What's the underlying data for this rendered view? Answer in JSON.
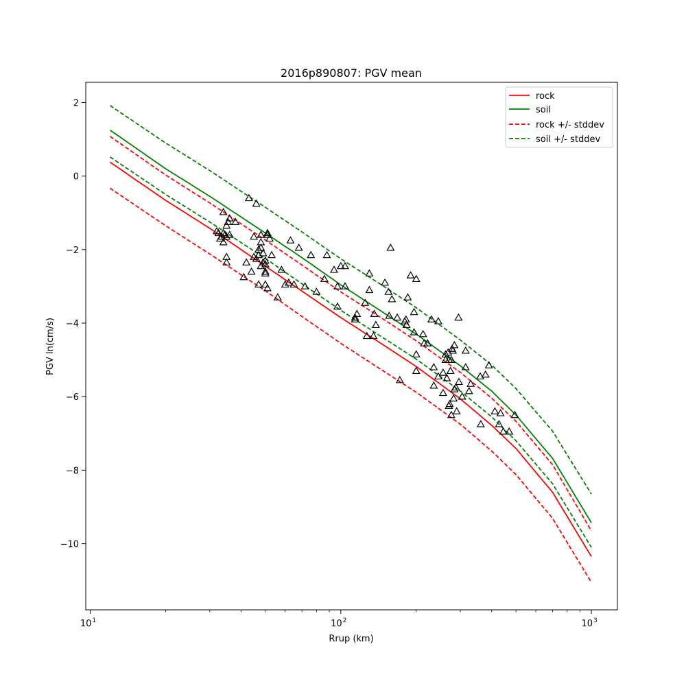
{
  "chart_data": {
    "type": "scatter",
    "title": "2016p890807: PGV mean",
    "xlabel": "Rrup (km)",
    "ylabel": "PGV ln(cm/s)",
    "xscale": "log",
    "xlim": [
      9.6,
      1270
    ],
    "ylim": [
      -11.8,
      2.55
    ],
    "xticks": [
      10,
      100,
      1000
    ],
    "xtick_labels": [
      [
        "10",
        "1"
      ],
      [
        "10",
        "2"
      ],
      [
        "10",
        "3"
      ]
    ],
    "yticks": [
      -10,
      -8,
      -6,
      -4,
      -2,
      0,
      2
    ],
    "ytick_labels": [
      "−10",
      "−8",
      "−6",
      "−4",
      "−2",
      "0",
      "2"
    ],
    "grid": false,
    "legend_position": "top-right",
    "series": [
      {
        "name": "rock",
        "style": "solid",
        "color": "#ff0000",
        "x": [
          12,
          20,
          30,
          50,
          70,
          100,
          150,
          200,
          300,
          400,
          500,
          700,
          1000
        ],
        "y": [
          0.38,
          -0.66,
          -1.42,
          -2.45,
          -3.13,
          -3.85,
          -4.62,
          -5.18,
          -6.06,
          -6.78,
          -7.41,
          -8.6,
          -10.35
        ]
      },
      {
        "name": "soil",
        "style": "solid",
        "color": "#008000",
        "x": [
          12,
          20,
          30,
          50,
          70,
          100,
          150,
          200,
          300,
          400,
          500,
          700,
          1000
        ],
        "y": [
          1.25,
          0.2,
          -0.55,
          -1.55,
          -2.22,
          -2.96,
          -3.74,
          -4.3,
          -5.16,
          -5.85,
          -6.5,
          -7.68,
          -9.43
        ]
      },
      {
        "name": "rock +/- stddev",
        "style": "dashed",
        "color": "#ff0000",
        "band": "upper",
        "x": [
          12,
          20,
          30,
          50,
          70,
          100,
          150,
          200,
          300,
          400,
          500,
          700,
          1000
        ],
        "y": [
          1.08,
          0.03,
          -0.73,
          -1.74,
          -2.42,
          -3.15,
          -3.92,
          -4.48,
          -5.34,
          -6.04,
          -6.67,
          -7.85,
          -9.65
        ]
      },
      {
        "name": "",
        "style": "dashed",
        "color": "#ff0000",
        "band": "lower",
        "x": [
          12,
          20,
          30,
          50,
          70,
          100,
          150,
          200,
          300,
          400,
          500,
          700,
          1000
        ],
        "y": [
          -0.33,
          -1.35,
          -2.12,
          -3.12,
          -3.82,
          -4.55,
          -5.33,
          -5.88,
          -6.75,
          -7.48,
          -8.12,
          -9.31,
          -11.05
        ]
      },
      {
        "name": "soil +/- stddev",
        "style": "dashed",
        "color": "#008000",
        "band": "upper",
        "x": [
          12,
          20,
          30,
          50,
          70,
          100,
          150,
          200,
          300,
          400,
          500,
          700,
          1000
        ],
        "y": [
          1.92,
          0.9,
          0.15,
          -0.85,
          -1.52,
          -2.25,
          -3.02,
          -3.58,
          -4.46,
          -5.14,
          -5.78,
          -6.94,
          -8.65
        ]
      },
      {
        "name": "",
        "style": "dashed",
        "color": "#008000",
        "band": "lower",
        "x": [
          12,
          20,
          30,
          50,
          70,
          100,
          150,
          200,
          300,
          400,
          500,
          700,
          1000
        ],
        "y": [
          0.52,
          -0.5,
          -1.25,
          -2.24,
          -2.93,
          -3.65,
          -4.43,
          -4.98,
          -5.85,
          -6.55,
          -7.2,
          -8.37,
          -10.1
        ]
      }
    ],
    "observations": {
      "marker": "open-triangle",
      "color": "#000000",
      "points": [
        [
          32,
          -1.5
        ],
        [
          32.5,
          -1.55
        ],
        [
          33,
          -1.7
        ],
        [
          33.5,
          -1.65
        ],
        [
          34,
          -1.55
        ],
        [
          34,
          -1.8
        ],
        [
          34.5,
          -1.6
        ],
        [
          35,
          -1.35
        ],
        [
          35,
          -1.65
        ],
        [
          35.5,
          -1.25
        ],
        [
          36,
          -1.15
        ],
        [
          36,
          -1.6
        ],
        [
          34,
          -0.98
        ],
        [
          35,
          -2.2
        ],
        [
          35,
          -2.35
        ],
        [
          38,
          -1.25
        ],
        [
          41,
          -2.75
        ],
        [
          42,
          -2.35
        ],
        [
          43,
          -0.6
        ],
        [
          44,
          -2.6
        ],
        [
          45,
          -2.2
        ],
        [
          45,
          -1.65
        ],
        [
          46,
          -0.75
        ],
        [
          46,
          -2.25
        ],
        [
          47,
          -2.15
        ],
        [
          47,
          -2.95
        ],
        [
          47,
          -2.0
        ],
        [
          48,
          -1.6
        ],
        [
          48,
          -2.45
        ],
        [
          48,
          -1.8
        ],
        [
          48,
          -1.95
        ],
        [
          49,
          -2.1
        ],
        [
          49,
          -2.35
        ],
        [
          50,
          -2.65
        ],
        [
          50,
          -2.4
        ],
        [
          50,
          -2.3
        ],
        [
          50,
          -2.95
        ],
        [
          51,
          -3.05
        ],
        [
          51,
          -1.55
        ],
        [
          51,
          -1.6
        ],
        [
          52,
          -1.7
        ],
        [
          50,
          -2.6
        ],
        [
          53,
          -2.15
        ],
        [
          56,
          -3.3
        ],
        [
          58,
          -2.55
        ],
        [
          60,
          -2.95
        ],
        [
          62,
          -2.9
        ],
        [
          63,
          -1.75
        ],
        [
          65,
          -2.95
        ],
        [
          68,
          -1.95
        ],
        [
          72,
          -3.0
        ],
        [
          76,
          -2.15
        ],
        [
          80,
          -3.15
        ],
        [
          86,
          -2.8
        ],
        [
          88,
          -2.15
        ],
        [
          94,
          -2.55
        ],
        [
          97,
          -3.0
        ],
        [
          97,
          -3.55
        ],
        [
          100,
          -2.45
        ],
        [
          104,
          -2.45
        ],
        [
          104,
          -3.0
        ],
        [
          114,
          -3.85
        ],
        [
          114,
          -3.9
        ],
        [
          116,
          -3.75
        ],
        [
          125,
          -3.45
        ],
        [
          127,
          -4.35
        ],
        [
          130,
          -2.65
        ],
        [
          130,
          -3.1
        ],
        [
          135,
          -4.35
        ],
        [
          136,
          -3.75
        ],
        [
          138,
          -4.05
        ],
        [
          150,
          -2.9
        ],
        [
          155,
          -3.15
        ],
        [
          158,
          -1.95
        ],
        [
          160,
          -3.35
        ],
        [
          156,
          -3.8
        ],
        [
          168,
          -3.85
        ],
        [
          172,
          -5.55
        ],
        [
          180,
          -3.95
        ],
        [
          182,
          -3.9
        ],
        [
          183,
          -4.05
        ],
        [
          185,
          -3.3
        ],
        [
          190,
          -2.7
        ],
        [
          196,
          -3.7
        ],
        [
          196,
          -4.25
        ],
        [
          200,
          -2.8
        ],
        [
          200,
          -4.85
        ],
        [
          200,
          -5.3
        ],
        [
          213,
          -4.3
        ],
        [
          215,
          -4.55
        ],
        [
          222,
          -4.55
        ],
        [
          230,
          -3.9
        ],
        [
          235,
          -5.2
        ],
        [
          235,
          -5.7
        ],
        [
          245,
          -3.95
        ],
        [
          245,
          -5.45
        ],
        [
          256,
          -5.9
        ],
        [
          256,
          -5.35
        ],
        [
          262,
          -4.85
        ],
        [
          262,
          -5.0
        ],
        [
          265,
          -5.5
        ],
        [
          268,
          -4.8
        ],
        [
          270,
          -5.0
        ],
        [
          270,
          -6.25
        ],
        [
          272,
          -6.2
        ],
        [
          274,
          -5.3
        ],
        [
          276,
          -6.5
        ],
        [
          276,
          -5.0
        ],
        [
          278,
          -4.7
        ],
        [
          280,
          -4.75
        ],
        [
          282,
          -6.05
        ],
        [
          284,
          -5.8
        ],
        [
          284,
          -4.6
        ],
        [
          288,
          -5.75
        ],
        [
          290,
          -6.4
        ],
        [
          295,
          -3.85
        ],
        [
          296,
          -5.6
        ],
        [
          305,
          -6.0
        ],
        [
          315,
          -4.75
        ],
        [
          315,
          -5.2
        ],
        [
          325,
          -5.85
        ],
        [
          330,
          -5.65
        ],
        [
          360,
          -5.45
        ],
        [
          362,
          -6.75
        ],
        [
          378,
          -5.4
        ],
        [
          390,
          -5.15
        ],
        [
          412,
          -6.4
        ],
        [
          428,
          -6.75
        ],
        [
          434,
          -6.45
        ],
        [
          445,
          -6.95
        ],
        [
          470,
          -6.95
        ],
        [
          495,
          -6.5
        ]
      ]
    }
  }
}
